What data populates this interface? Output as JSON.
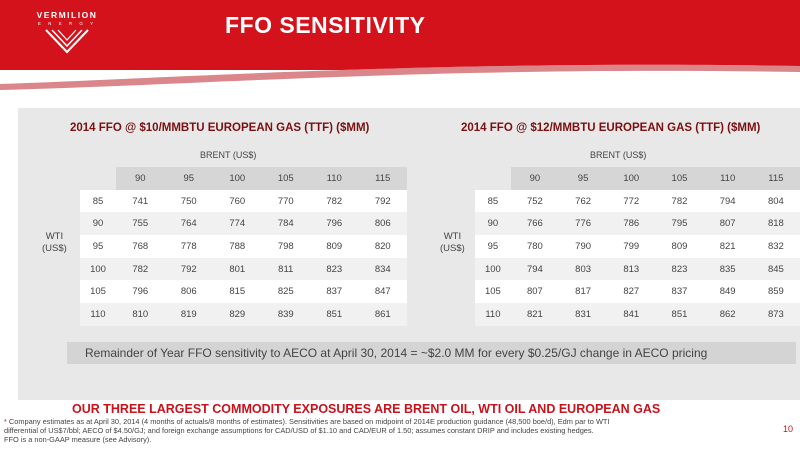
{
  "brand": {
    "name": "VERMILION",
    "sub": "E N E R G Y",
    "red": "#d3121c",
    "panel_gray": "#e8e8e8"
  },
  "page_title": "FFO SENSITIVITY",
  "tables": [
    {
      "title": "2014 FFO @ $10/MMBTU EUROPEAN GAS (TTF) ($MM)",
      "col_header": "BRENT (US$)",
      "row_header_line1": "WTI",
      "row_header_line2": "(US$)",
      "columns": [
        "90",
        "95",
        "100",
        "105",
        "110",
        "115"
      ],
      "rows": [
        {
          "label": "85",
          "values": [
            "741",
            "750",
            "760",
            "770",
            "782",
            "792"
          ]
        },
        {
          "label": "90",
          "values": [
            "755",
            "764",
            "774",
            "784",
            "796",
            "806"
          ]
        },
        {
          "label": "95",
          "values": [
            "768",
            "778",
            "788",
            "798",
            "809",
            "820"
          ]
        },
        {
          "label": "100",
          "values": [
            "782",
            "792",
            "801",
            "811",
            "823",
            "834"
          ]
        },
        {
          "label": "105",
          "values": [
            "796",
            "806",
            "815",
            "825",
            "837",
            "847"
          ]
        },
        {
          "label": "110",
          "values": [
            "810",
            "819",
            "829",
            "839",
            "851",
            "861"
          ]
        }
      ]
    },
    {
      "title": "2014 FFO @ $12/MMBTU EUROPEAN GAS (TTF) ($MM)",
      "col_header": "BRENT (US$)",
      "row_header_line1": "WTI",
      "row_header_line2": "(US$)",
      "columns": [
        "90",
        "95",
        "100",
        "105",
        "110",
        "115"
      ],
      "rows": [
        {
          "label": "85",
          "values": [
            "752",
            "762",
            "772",
            "782",
            "794",
            "804"
          ]
        },
        {
          "label": "90",
          "values": [
            "766",
            "776",
            "786",
            "795",
            "807",
            "818"
          ]
        },
        {
          "label": "95",
          "values": [
            "780",
            "790",
            "799",
            "809",
            "821",
            "832"
          ]
        },
        {
          "label": "100",
          "values": [
            "794",
            "803",
            "813",
            "823",
            "835",
            "845"
          ]
        },
        {
          "label": "105",
          "values": [
            "807",
            "817",
            "827",
            "837",
            "849",
            "859"
          ]
        },
        {
          "label": "110",
          "values": [
            "821",
            "831",
            "841",
            "851",
            "862",
            "873"
          ]
        }
      ]
    }
  ],
  "aeco_note": "Remainder of Year FFO sensitivity to AECO at April 30, 2014 = ~$2.0 MM for every $0.25/GJ change in AECO pricing",
  "exposures": "OUR THREE LARGEST COMMODITY EXPOSURES ARE BRENT OIL, WTI OIL AND EUROPEAN GAS",
  "footnote": {
    "asterisk": "*",
    "line1": "Company estimates as at April 30, 2014 (4 months of actuals/8 months of estimates).  Sensitivities are based on midpoint of 2014E production guidance (48,500 boe/d), Edm par to WTI",
    "line2": "differential of US$7/bbl; AECO of $4.50/GJ; and foreign exchange assumptions for CAD/USD of $1.10 and CAD/EUR of 1.50; assumes constant DRIP and includes existing hedges.",
    "line3": "FFO is a non-GAAP measure (see Advisory)."
  },
  "page_number": "10"
}
